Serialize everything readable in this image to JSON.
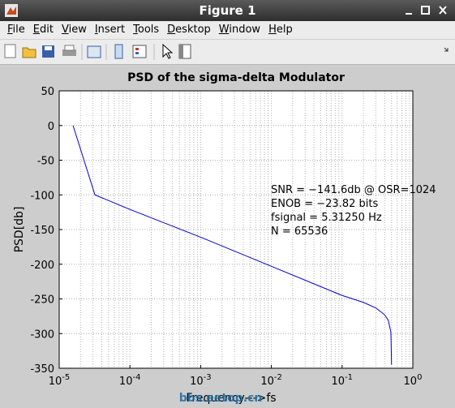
{
  "window": {
    "title": "Figure 1",
    "menu": [
      "File",
      "Edit",
      "View",
      "Insert",
      "Tools",
      "Desktop",
      "Window",
      "Help"
    ]
  },
  "chart_data": {
    "type": "line",
    "title": "PSD of the sigma-delta Modulator",
    "xlabel": "Frequency--->fs",
    "ylabel": "PSD[db]",
    "x": [
      1.57e-05,
      3.2e-05,
      0.0001,
      0.001,
      0.01,
      0.1,
      0.2,
      0.3,
      0.4,
      0.45,
      0.49,
      0.5
    ],
    "values": [
      0,
      -100,
      -121,
      -161,
      -203,
      -245,
      -255,
      -263,
      -273,
      -281,
      -298,
      -345
    ],
    "color": "#0000cc",
    "xscale": "log",
    "xlim": [
      1e-05,
      1
    ],
    "xticks": [
      {
        "value": 1e-05,
        "label": "10^-5"
      },
      {
        "value": 0.0001,
        "label": "10^-4"
      },
      {
        "value": 0.001,
        "label": "10^-3"
      },
      {
        "value": 0.01,
        "label": "10^-2"
      },
      {
        "value": 0.1,
        "label": "10^-1"
      },
      {
        "value": 1,
        "label": "10^0"
      }
    ],
    "ylim": [
      -350,
      50
    ],
    "yticks": [
      -350,
      -300,
      -250,
      -200,
      -150,
      -100,
      -50,
      0,
      50
    ],
    "grid": true,
    "minor_grid": true,
    "annotations": [
      "SNR = −141.6db @ OSR=1024",
      "ENOB = −23.82 bits",
      "fsignal = 5.31250 Hz",
      "N = 65536"
    ],
    "watermark": "bbs.eetop.cn"
  }
}
